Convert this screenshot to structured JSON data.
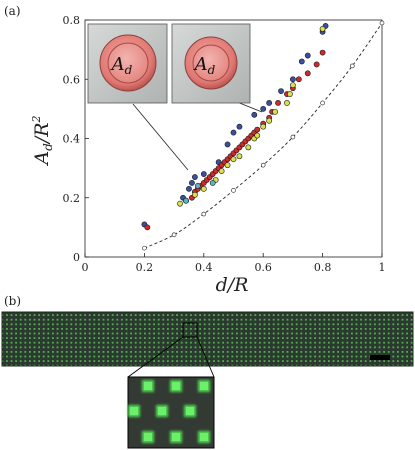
{
  "panel_a": {
    "label": "(a)",
    "ylabel_main": "A",
    "ylabel_sub": "d",
    "ylabel_rest": "/R",
    "ylabel_sup": "2",
    "xlabel": "d/R",
    "inset_left_main": "A",
    "inset_left_sub": "d",
    "inset_right_main": "A",
    "inset_right_sub": "d"
  },
  "panel_b": {
    "label": "(b)"
  },
  "colors": {
    "red": "#cc2b2b",
    "blue": "#3b4f9e",
    "yellow": "#d9e04a",
    "cyan": "#55b6c6",
    "dot_green": "#4fd64f",
    "strip_bg": "#2b3a2e"
  },
  "chart_data": {
    "type": "scatter",
    "xlim": [
      0,
      1
    ],
    "ylim": [
      0,
      0.8
    ],
    "x_ticks": [
      "0",
      "0.2",
      "0.4",
      "0.6",
      "0.8",
      "1"
    ],
    "y_ticks": [
      "0",
      "0.2",
      "0.4",
      "0.6",
      "0.8"
    ],
    "series": [
      {
        "color": "#3b4f9e",
        "points": [
          [
            0.2,
            0.11
          ],
          [
            0.33,
            0.2
          ],
          [
            0.35,
            0.23
          ],
          [
            0.36,
            0.25
          ],
          [
            0.37,
            0.27
          ],
          [
            0.4,
            0.28
          ],
          [
            0.45,
            0.32
          ],
          [
            0.48,
            0.38
          ],
          [
            0.5,
            0.42
          ],
          [
            0.52,
            0.44
          ],
          [
            0.57,
            0.48
          ],
          [
            0.6,
            0.5
          ],
          [
            0.62,
            0.52
          ],
          [
            0.66,
            0.56
          ],
          [
            0.7,
            0.6
          ],
          [
            0.73,
            0.66
          ],
          [
            0.75,
            0.68
          ],
          [
            0.8,
            0.76
          ],
          [
            0.81,
            0.78
          ]
        ]
      },
      {
        "color": "#cc2b2b",
        "points": [
          [
            0.21,
            0.1
          ],
          [
            0.34,
            0.19
          ],
          [
            0.36,
            0.2
          ],
          [
            0.37,
            0.22
          ],
          [
            0.38,
            0.23
          ],
          [
            0.39,
            0.24
          ],
          [
            0.4,
            0.25
          ],
          [
            0.41,
            0.26
          ],
          [
            0.42,
            0.27
          ],
          [
            0.43,
            0.28
          ],
          [
            0.44,
            0.29
          ],
          [
            0.45,
            0.3
          ],
          [
            0.46,
            0.31
          ],
          [
            0.47,
            0.32
          ],
          [
            0.48,
            0.33
          ],
          [
            0.49,
            0.34
          ],
          [
            0.5,
            0.35
          ],
          [
            0.51,
            0.36
          ],
          [
            0.52,
            0.37
          ],
          [
            0.53,
            0.38
          ],
          [
            0.54,
            0.39
          ],
          [
            0.55,
            0.4
          ],
          [
            0.56,
            0.41
          ],
          [
            0.57,
            0.42
          ],
          [
            0.58,
            0.43
          ],
          [
            0.6,
            0.45
          ],
          [
            0.62,
            0.47
          ],
          [
            0.63,
            0.49
          ],
          [
            0.65,
            0.52
          ],
          [
            0.68,
            0.55
          ],
          [
            0.7,
            0.57
          ],
          [
            0.72,
            0.6
          ],
          [
            0.75,
            0.62
          ],
          [
            0.78,
            0.65
          ],
          [
            0.8,
            0.69
          ]
        ]
      },
      {
        "color": "#d9e04a",
        "points": [
          [
            0.32,
            0.18
          ],
          [
            0.37,
            0.21
          ],
          [
            0.4,
            0.23
          ],
          [
            0.44,
            0.26
          ],
          [
            0.46,
            0.29
          ],
          [
            0.48,
            0.31
          ],
          [
            0.5,
            0.33
          ],
          [
            0.52,
            0.34
          ],
          [
            0.55,
            0.37
          ],
          [
            0.57,
            0.4
          ],
          [
            0.58,
            0.41
          ],
          [
            0.6,
            0.44
          ],
          [
            0.62,
            0.46
          ],
          [
            0.64,
            0.49
          ],
          [
            0.68,
            0.52
          ],
          [
            0.69,
            0.55
          ],
          [
            0.7,
            0.58
          ],
          [
            0.8,
            0.77
          ]
        ]
      },
      {
        "color": "#55b6c6",
        "points": [
          [
            0.34,
            0.19
          ],
          [
            0.38,
            0.24
          ],
          [
            0.43,
            0.25
          ]
        ]
      },
      {
        "color": "#ffffff",
        "points": [
          [
            0.2,
            0.03
          ],
          [
            0.3,
            0.075
          ],
          [
            0.4,
            0.145
          ],
          [
            0.5,
            0.225
          ],
          [
            0.6,
            0.31
          ],
          [
            0.7,
            0.405
          ],
          [
            0.8,
            0.52
          ],
          [
            0.9,
            0.645
          ],
          [
            1.0,
            0.79
          ]
        ]
      }
    ],
    "dashed_curve": [
      [
        0.2,
        0.03
      ],
      [
        0.3,
        0.075
      ],
      [
        0.4,
        0.145
      ],
      [
        0.5,
        0.225
      ],
      [
        0.6,
        0.31
      ],
      [
        0.7,
        0.405
      ],
      [
        0.8,
        0.52
      ],
      [
        0.9,
        0.645
      ],
      [
        1.0,
        0.79
      ]
    ]
  }
}
